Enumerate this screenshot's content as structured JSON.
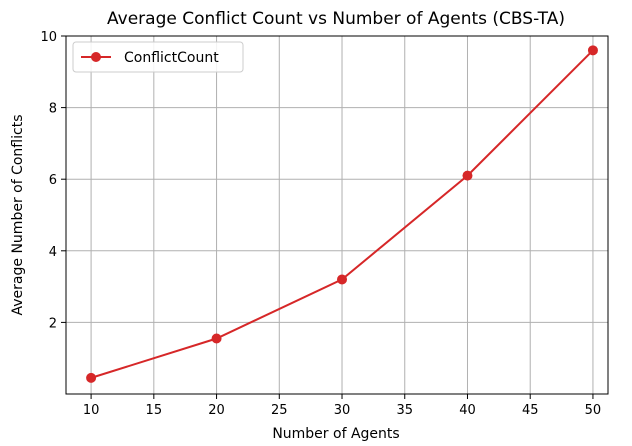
{
  "chart_data": {
    "type": "line",
    "title": "Average Conflict Count vs Number of Agents (CBS-TA)",
    "xlabel": "Number of Agents",
    "ylabel": "Average Number of Conflicts",
    "x": [
      10,
      20,
      30,
      40,
      50
    ],
    "series": [
      {
        "name": "ConflictCount",
        "values": [
          0.45,
          1.55,
          3.2,
          6.1,
          9.6
        ],
        "color": "#d62728",
        "marker": "circle"
      }
    ],
    "xlim": [
      8,
      51.2
    ],
    "ylim": [
      0,
      10
    ],
    "xticks": [
      10,
      15,
      20,
      25,
      30,
      35,
      40,
      45,
      50
    ],
    "yticks": [
      2,
      4,
      6,
      8,
      10
    ],
    "grid": true,
    "legend_position": "top-left"
  }
}
